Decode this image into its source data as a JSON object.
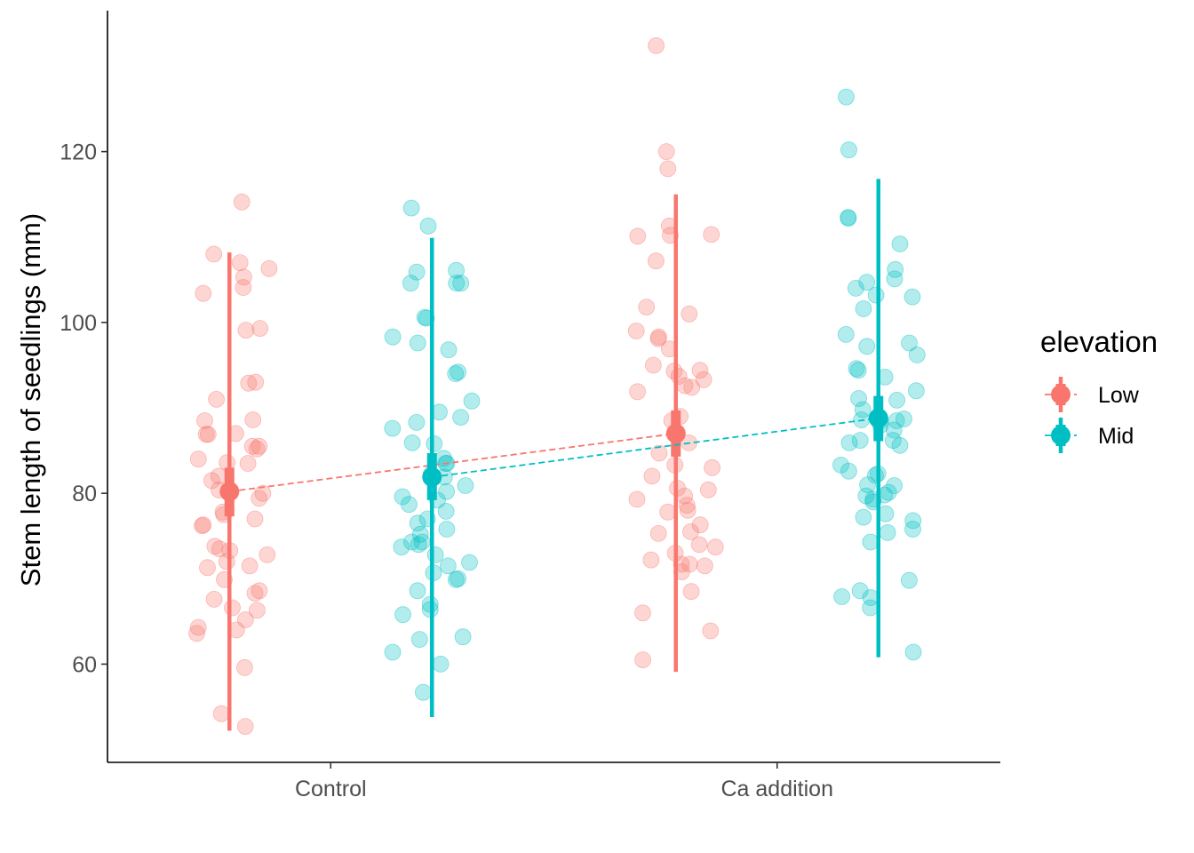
{
  "chart_data": {
    "type": "scatter",
    "title": "",
    "xlabel": "",
    "ylabel": "Stem length of seedlings (mm)",
    "categories": [
      "Control",
      "Ca addition"
    ],
    "ylim": [
      48.5,
      136.5
    ],
    "yticks": [
      60,
      80,
      100,
      120
    ],
    "grid": false,
    "legend": {
      "title": "elevation",
      "position": "right"
    },
    "series": [
      {
        "name": "Low",
        "color": "#F8766D",
        "summary": [
          {
            "category": "Control",
            "mean": 80.2,
            "se_low": 77.3,
            "se_high": 83.0,
            "sd_low": 52.2,
            "sd_high": 108.2
          },
          {
            "category": "Ca addition",
            "mean": 87.0,
            "se_low": 84.3,
            "se_high": 89.7,
            "sd_low": 59.1,
            "sd_high": 115.0
          }
        ],
        "points": [
          [
            "Control",
            114.1
          ],
          [
            "Control",
            108.0
          ],
          [
            "Control",
            107.0
          ],
          [
            "Control",
            106.3
          ],
          [
            "Control",
            105.3
          ],
          [
            "Control",
            104.1
          ],
          [
            "Control",
            103.4
          ],
          [
            "Control",
            99.3
          ],
          [
            "Control",
            99.1
          ],
          [
            "Control",
            93.0
          ],
          [
            "Control",
            92.9
          ],
          [
            "Control",
            91.0
          ],
          [
            "Control",
            88.6
          ],
          [
            "Control",
            88.5
          ],
          [
            "Control",
            87.0
          ],
          [
            "Control",
            86.9
          ],
          [
            "Control",
            86.9
          ],
          [
            "Control",
            85.5
          ],
          [
            "Control",
            85.5
          ],
          [
            "Control",
            85.2
          ],
          [
            "Control",
            84.0
          ],
          [
            "Control",
            83.6
          ],
          [
            "Control",
            83.5
          ],
          [
            "Control",
            82.0
          ],
          [
            "Control",
            81.5
          ],
          [
            "Control",
            80.4
          ],
          [
            "Control",
            80.0
          ],
          [
            "Control",
            79.4
          ],
          [
            "Control",
            77.8
          ],
          [
            "Control",
            77.5
          ],
          [
            "Control",
            77.0
          ],
          [
            "Control",
            76.3
          ],
          [
            "Control",
            76.2
          ],
          [
            "Control",
            73.8
          ],
          [
            "Control",
            73.5
          ],
          [
            "Control",
            73.3
          ],
          [
            "Control",
            72.8
          ],
          [
            "Control",
            72.0
          ],
          [
            "Control",
            71.5
          ],
          [
            "Control",
            71.3
          ],
          [
            "Control",
            69.9
          ],
          [
            "Control",
            68.6
          ],
          [
            "Control",
            68.3
          ],
          [
            "Control",
            67.6
          ],
          [
            "Control",
            66.6
          ],
          [
            "Control",
            66.3
          ],
          [
            "Control",
            65.2
          ],
          [
            "Control",
            64.3
          ],
          [
            "Control",
            64.0
          ],
          [
            "Control",
            63.6
          ],
          [
            "Control",
            59.6
          ],
          [
            "Control",
            54.2
          ],
          [
            "Control",
            52.7
          ],
          [
            "Ca addition",
            132.4
          ],
          [
            "Ca addition",
            120.0
          ],
          [
            "Ca addition",
            118.0
          ],
          [
            "Ca addition",
            111.3
          ],
          [
            "Ca addition",
            110.3
          ],
          [
            "Ca addition",
            110.2
          ],
          [
            "Ca addition",
            110.1
          ],
          [
            "Ca addition",
            107.2
          ],
          [
            "Ca addition",
            101.8
          ],
          [
            "Ca addition",
            101.0
          ],
          [
            "Ca addition",
            99.0
          ],
          [
            "Ca addition",
            98.3
          ],
          [
            "Ca addition",
            98.1
          ],
          [
            "Ca addition",
            96.9
          ],
          [
            "Ca addition",
            95.0
          ],
          [
            "Ca addition",
            94.4
          ],
          [
            "Ca addition",
            94.3
          ],
          [
            "Ca addition",
            93.7
          ],
          [
            "Ca addition",
            93.3
          ],
          [
            "Ca addition",
            92.6
          ],
          [
            "Ca addition",
            92.4
          ],
          [
            "Ca addition",
            91.9
          ],
          [
            "Ca addition",
            89.0
          ],
          [
            "Ca addition",
            88.5
          ],
          [
            "Ca addition",
            86.9
          ],
          [
            "Ca addition",
            85.9
          ],
          [
            "Ca addition",
            84.7
          ],
          [
            "Ca addition",
            83.3
          ],
          [
            "Ca addition",
            83.0
          ],
          [
            "Ca addition",
            82.0
          ],
          [
            "Ca addition",
            80.6
          ],
          [
            "Ca addition",
            80.4
          ],
          [
            "Ca addition",
            79.7
          ],
          [
            "Ca addition",
            79.3
          ],
          [
            "Ca addition",
            78.6
          ],
          [
            "Ca addition",
            78.0
          ],
          [
            "Ca addition",
            77.8
          ],
          [
            "Ca addition",
            76.3
          ],
          [
            "Ca addition",
            75.5
          ],
          [
            "Ca addition",
            75.3
          ],
          [
            "Ca addition",
            74.0
          ],
          [
            "Ca addition",
            73.7
          ],
          [
            "Ca addition",
            73.0
          ],
          [
            "Ca addition",
            72.2
          ],
          [
            "Ca addition",
            71.7
          ],
          [
            "Ca addition",
            71.7
          ],
          [
            "Ca addition",
            71.5
          ],
          [
            "Ca addition",
            70.8
          ],
          [
            "Ca addition",
            68.5
          ],
          [
            "Ca addition",
            66.0
          ],
          [
            "Ca addition",
            63.9
          ],
          [
            "Ca addition",
            60.5
          ]
        ]
      },
      {
        "name": "Mid",
        "color": "#00BFC4",
        "summary": [
          {
            "category": "Control",
            "mean": 81.9,
            "se_low": 79.2,
            "se_high": 84.7,
            "sd_low": 53.8,
            "sd_high": 109.9
          },
          {
            "category": "Ca addition",
            "mean": 88.8,
            "se_low": 86.1,
            "se_high": 91.4,
            "sd_low": 60.8,
            "sd_high": 116.8
          }
        ],
        "points": [
          [
            "Control",
            113.4
          ],
          [
            "Control",
            111.3
          ],
          [
            "Control",
            106.1
          ],
          [
            "Control",
            105.9
          ],
          [
            "Control",
            104.6
          ],
          [
            "Control",
            104.6
          ],
          [
            "Control",
            104.6
          ],
          [
            "Control",
            100.6
          ],
          [
            "Control",
            100.5
          ],
          [
            "Control",
            98.3
          ],
          [
            "Control",
            97.6
          ],
          [
            "Control",
            96.8
          ],
          [
            "Control",
            94.2
          ],
          [
            "Control",
            94.0
          ],
          [
            "Control",
            90.8
          ],
          [
            "Control",
            89.5
          ],
          [
            "Control",
            88.9
          ],
          [
            "Control",
            88.3
          ],
          [
            "Control",
            87.6
          ],
          [
            "Control",
            85.9
          ],
          [
            "Control",
            85.8
          ],
          [
            "Control",
            84.1
          ],
          [
            "Control",
            83.5
          ],
          [
            "Control",
            83.5
          ],
          [
            "Control",
            82.2
          ],
          [
            "Control",
            81.9
          ],
          [
            "Control",
            80.9
          ],
          [
            "Control",
            80.2
          ],
          [
            "Control",
            79.6
          ],
          [
            "Control",
            79.2
          ],
          [
            "Control",
            78.7
          ],
          [
            "Control",
            77.9
          ],
          [
            "Control",
            77.0
          ],
          [
            "Control",
            76.5
          ],
          [
            "Control",
            75.8
          ],
          [
            "Control",
            75.2
          ],
          [
            "Control",
            74.3
          ],
          [
            "Control",
            74.3
          ],
          [
            "Control",
            74.0
          ],
          [
            "Control",
            73.7
          ],
          [
            "Control",
            72.8
          ],
          [
            "Control",
            71.9
          ],
          [
            "Control",
            71.5
          ],
          [
            "Control",
            70.7
          ],
          [
            "Control",
            70.0
          ],
          [
            "Control",
            69.9
          ],
          [
            "Control",
            68.6
          ],
          [
            "Control",
            67.0
          ],
          [
            "Control",
            66.4
          ],
          [
            "Control",
            65.8
          ],
          [
            "Control",
            63.2
          ],
          [
            "Control",
            62.9
          ],
          [
            "Control",
            61.4
          ],
          [
            "Control",
            60.0
          ],
          [
            "Control",
            56.7
          ],
          [
            "Ca addition",
            126.4
          ],
          [
            "Ca addition",
            120.2
          ],
          [
            "Ca addition",
            112.3
          ],
          [
            "Ca addition",
            112.2
          ],
          [
            "Ca addition",
            109.2
          ],
          [
            "Ca addition",
            106.2
          ],
          [
            "Ca addition",
            105.1
          ],
          [
            "Ca addition",
            104.7
          ],
          [
            "Ca addition",
            104.0
          ],
          [
            "Ca addition",
            103.2
          ],
          [
            "Ca addition",
            103.0
          ],
          [
            "Ca addition",
            101.6
          ],
          [
            "Ca addition",
            98.6
          ],
          [
            "Ca addition",
            97.6
          ],
          [
            "Ca addition",
            97.2
          ],
          [
            "Ca addition",
            96.2
          ],
          [
            "Ca addition",
            94.6
          ],
          [
            "Ca addition",
            94.4
          ],
          [
            "Ca addition",
            93.6
          ],
          [
            "Ca addition",
            92.0
          ],
          [
            "Ca addition",
            91.1
          ],
          [
            "Ca addition",
            90.9
          ],
          [
            "Ca addition",
            89.8
          ],
          [
            "Ca addition",
            88.7
          ],
          [
            "Ca addition",
            88.6
          ],
          [
            "Ca addition",
            88.5
          ],
          [
            "Ca addition",
            88.5
          ],
          [
            "Ca addition",
            88.0
          ],
          [
            "Ca addition",
            87.4
          ],
          [
            "Ca addition",
            86.2
          ],
          [
            "Ca addition",
            86.2
          ],
          [
            "Ca addition",
            85.9
          ],
          [
            "Ca addition",
            85.6
          ],
          [
            "Ca addition",
            83.3
          ],
          [
            "Ca addition",
            82.6
          ],
          [
            "Ca addition",
            82.3
          ],
          [
            "Ca addition",
            82.1
          ],
          [
            "Ca addition",
            81.0
          ],
          [
            "Ca addition",
            80.9
          ],
          [
            "Ca addition",
            80.1
          ],
          [
            "Ca addition",
            79.8
          ],
          [
            "Ca addition",
            79.7
          ],
          [
            "Ca addition",
            79.3
          ],
          [
            "Ca addition",
            79.0
          ],
          [
            "Ca addition",
            77.6
          ],
          [
            "Ca addition",
            77.2
          ],
          [
            "Ca addition",
            76.8
          ],
          [
            "Ca addition",
            75.8
          ],
          [
            "Ca addition",
            75.4
          ],
          [
            "Ca addition",
            74.3
          ],
          [
            "Ca addition",
            69.8
          ],
          [
            "Ca addition",
            68.6
          ],
          [
            "Ca addition",
            67.9
          ],
          [
            "Ca addition",
            67.8
          ],
          [
            "Ca addition",
            66.6
          ],
          [
            "Ca addition",
            61.4
          ]
        ]
      }
    ]
  }
}
